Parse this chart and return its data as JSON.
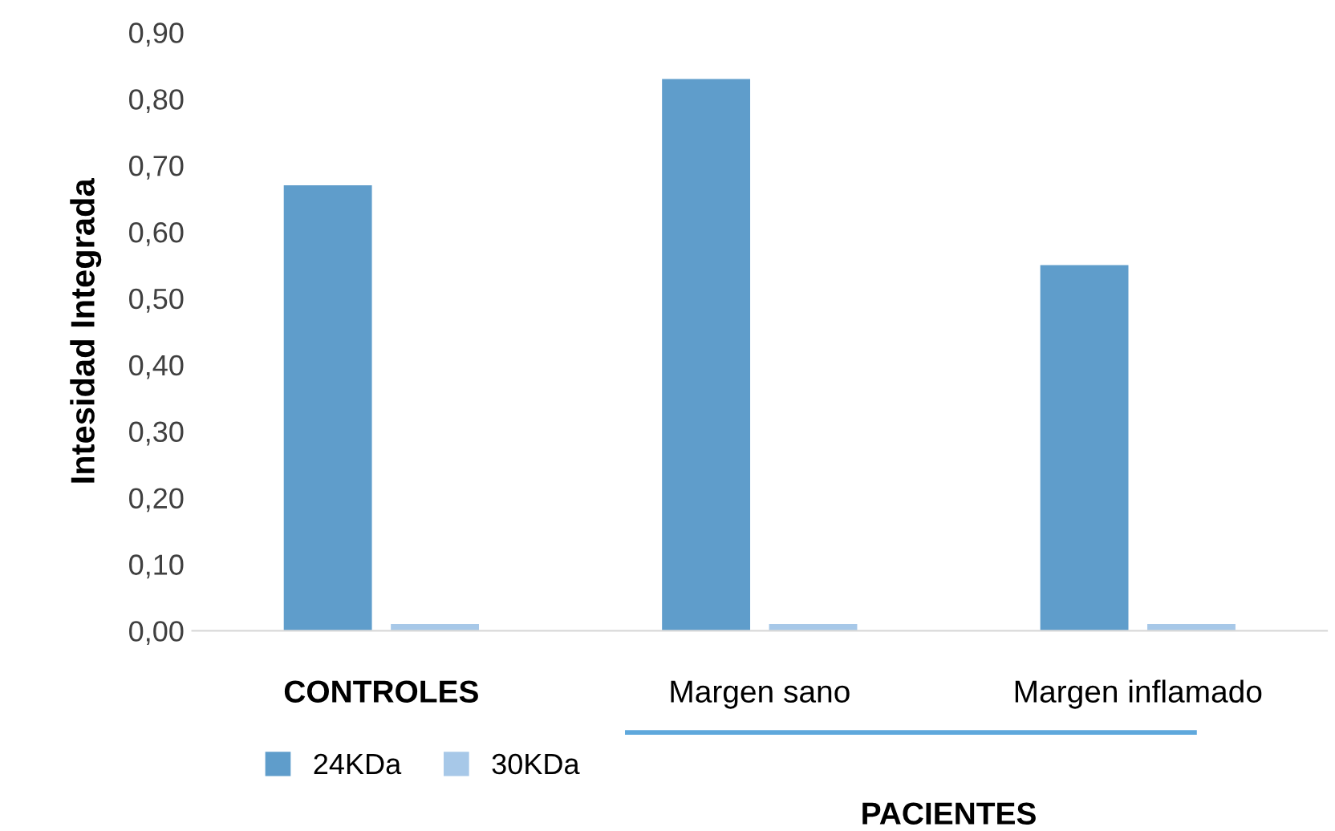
{
  "chart_data": {
    "type": "bar",
    "ylabel": "Intesidad Integrada",
    "categories": [
      "CONTROLES",
      "Margen sano",
      "Margen inflamado"
    ],
    "series": [
      {
        "name": "24KDa",
        "color": "#5f9dcb",
        "values": [
          0.67,
          0.83,
          0.55
        ]
      },
      {
        "name": "30KDa",
        "color": "#a7c8e8",
        "values": [
          0.01,
          0.01,
          0.01
        ]
      }
    ],
    "ylim": [
      0,
      0.9
    ],
    "yticks": [
      {
        "value": 0,
        "label": "0,00"
      },
      {
        "value": 0.1,
        "label": "0,10"
      },
      {
        "value": 0.2,
        "label": "0,20"
      },
      {
        "value": 0.3,
        "label": "0,30"
      },
      {
        "value": 0.4,
        "label": "0,40"
      },
      {
        "value": 0.5,
        "label": "0,50"
      },
      {
        "value": 0.6,
        "label": "0,60"
      },
      {
        "value": 0.7,
        "label": "0,70"
      },
      {
        "value": 0.8,
        "label": "0,80"
      },
      {
        "value": 0.9,
        "label": "0,90"
      }
    ],
    "annotations": [
      "PACIENTES"
    ],
    "grid": false,
    "legend": "bottom left"
  }
}
